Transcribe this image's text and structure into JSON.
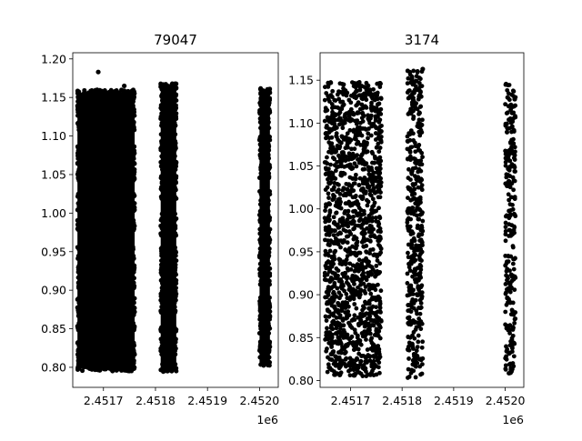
{
  "chart_data": [
    {
      "type": "scatter",
      "title": "79047",
      "xlabel": "",
      "ylabel": "",
      "x_offset_label": "1e6",
      "xlim": [
        2.451641,
        2.452036
      ],
      "ylim": [
        0.774,
        1.208
      ],
      "xticks": [
        2.4517,
        2.4518,
        2.4519,
        2.452
      ],
      "xtick_labels": [
        "2.4517",
        "2.4518",
        "2.4519",
        "2.4520"
      ],
      "yticks": [
        0.8,
        0.85,
        0.9,
        0.95,
        1.0,
        1.05,
        1.1,
        1.15,
        1.2
      ],
      "ytick_labels": [
        "0.80",
        "0.85",
        "0.90",
        "0.95",
        "1.00",
        "1.05",
        "1.10",
        "1.15",
        "1.20"
      ],
      "marker_color": "#000000",
      "series": [
        {
          "x_range": [
            2.45165,
            2.45176
          ],
          "y_range": [
            0.795,
            1.16
          ],
          "density": "dense"
        },
        {
          "x_range": [
            2.45181,
            2.45184
          ],
          "y_range": [
            0.793,
            1.168
          ],
          "density": "dense"
        },
        {
          "x_range": [
            2.452,
            2.45202
          ],
          "y_range": [
            0.802,
            1.162
          ],
          "density": "dense"
        }
      ],
      "outliers": [
        {
          "x": 2.45169,
          "y": 1.183
        },
        {
          "x": 2.45174,
          "y": 1.165
        }
      ]
    },
    {
      "type": "scatter",
      "title": "3174",
      "xlabel": "",
      "ylabel": "",
      "x_offset_label": "1e6",
      "xlim": [
        2.451641,
        2.452036
      ],
      "ylim": [
        0.792,
        1.182
      ],
      "xticks": [
        2.4517,
        2.4518,
        2.4519,
        2.452
      ],
      "xtick_labels": [
        "2.4517",
        "2.4518",
        "2.4519",
        "2.4520"
      ],
      "yticks": [
        0.8,
        0.85,
        0.9,
        0.95,
        1.0,
        1.05,
        1.1,
        1.15
      ],
      "ytick_labels": [
        "0.80",
        "0.85",
        "0.90",
        "0.95",
        "1.00",
        "1.05",
        "1.10",
        "1.15"
      ],
      "marker_color": "#000000",
      "series": [
        {
          "x_range": [
            2.45165,
            2.45176
          ],
          "y_range": [
            0.805,
            1.148
          ],
          "density": "sparse"
        },
        {
          "x_range": [
            2.45181,
            2.45184
          ],
          "y_range": [
            0.803,
            1.162
          ],
          "density": "sparse"
        },
        {
          "x_range": [
            2.452,
            2.45202
          ],
          "y_range": [
            0.808,
            1.146
          ],
          "density": "sparse"
        }
      ],
      "outliers": [
        {
          "x": 2.45184,
          "y": 1.163
        }
      ]
    }
  ]
}
